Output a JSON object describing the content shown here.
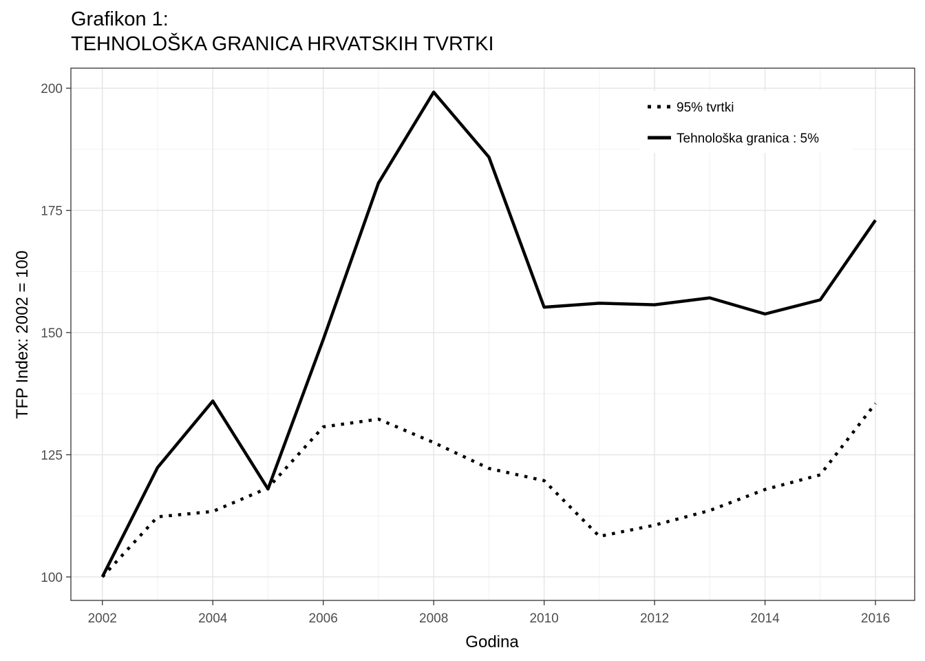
{
  "chart_data": {
    "type": "line",
    "title_line1": "Grafikon 1:",
    "title_line2": "TEHNOLOŠKA GRANICA HRVATSKIH TVRTKI",
    "xlabel": "Godina",
    "ylabel": "TFP Index: 2002 = 100",
    "x": [
      2002,
      2003,
      2004,
      2005,
      2006,
      2007,
      2008,
      2009,
      2010,
      2011,
      2012,
      2013,
      2014,
      2015,
      2016
    ],
    "xlim": [
      2001.43,
      2016.71
    ],
    "ylim": [
      95.2,
      204.1
    ],
    "x_ticks": [
      2002,
      2004,
      2006,
      2008,
      2010,
      2012,
      2014,
      2016
    ],
    "x_tick_labels": [
      "2002",
      "2004",
      "2006",
      "2008",
      "2010",
      "2012",
      "2014",
      "2016"
    ],
    "y_ticks": [
      100,
      125,
      150,
      175,
      200
    ],
    "y_tick_labels": [
      "100",
      "125",
      "150",
      "175",
      "200"
    ],
    "grid": true,
    "legend_position": "top-right",
    "series": [
      {
        "name": "95% tvrtki",
        "style": "dotted",
        "color": "#000000",
        "values": [
          100,
          112.3,
          113.4,
          118.2,
          130.7,
          132.3,
          127.5,
          122.2,
          119.7,
          108.3,
          110.6,
          113.6,
          117.9,
          120.9,
          135.5
        ]
      },
      {
        "name": "Tehnološka granica : 5%",
        "style": "solid",
        "color": "#000000",
        "values": [
          100,
          122.4,
          136.0,
          118.0,
          148.6,
          180.6,
          199.2,
          185.9,
          155.2,
          156.0,
          155.7,
          157.1,
          153.8,
          156.7,
          173.0
        ]
      }
    ]
  }
}
